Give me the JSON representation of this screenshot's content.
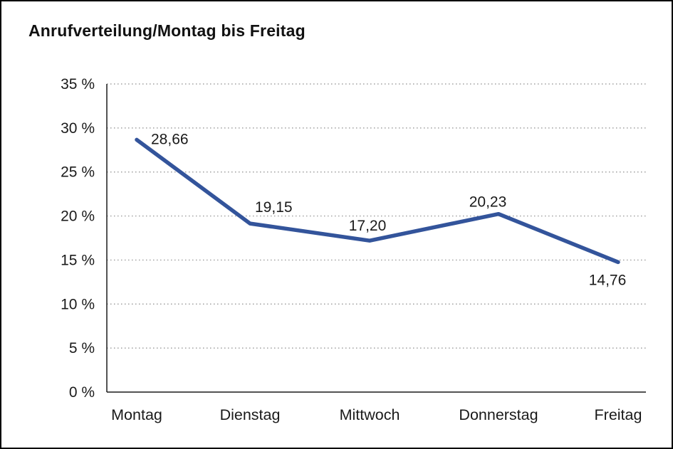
{
  "chart_data": {
    "type": "line",
    "title": "Anrufverteilung/Montag bis Freitag",
    "categories": [
      "Montag",
      "Dienstag",
      "Mittwoch",
      "Donnerstag",
      "Freitag"
    ],
    "values": [
      28.66,
      19.15,
      17.2,
      20.23,
      14.76
    ],
    "value_labels": [
      "28,66",
      "19,15",
      "17,20",
      "20,23",
      "14,76"
    ],
    "y_ticks": [
      {
        "label": "35 %",
        "value": 35
      },
      {
        "label": "30 %",
        "value": 30
      },
      {
        "label": "25 %",
        "value": 25
      },
      {
        "label": "20 %",
        "value": 20
      },
      {
        "label": "15 %",
        "value": 15
      },
      {
        "label": "10 %",
        "value": 10
      },
      {
        "label": "5 %",
        "value": 5
      },
      {
        "label": "0 %",
        "value": 0
      }
    ],
    "ylim": [
      0,
      35
    ],
    "xlabel": "",
    "ylabel": "",
    "legend": "none",
    "grid": "horizontal-dotted",
    "colors": {
      "line": "#33549B",
      "axis": "#1a1a1a",
      "gridline": "#8c8c8c",
      "text": "#1a1a1a"
    }
  }
}
